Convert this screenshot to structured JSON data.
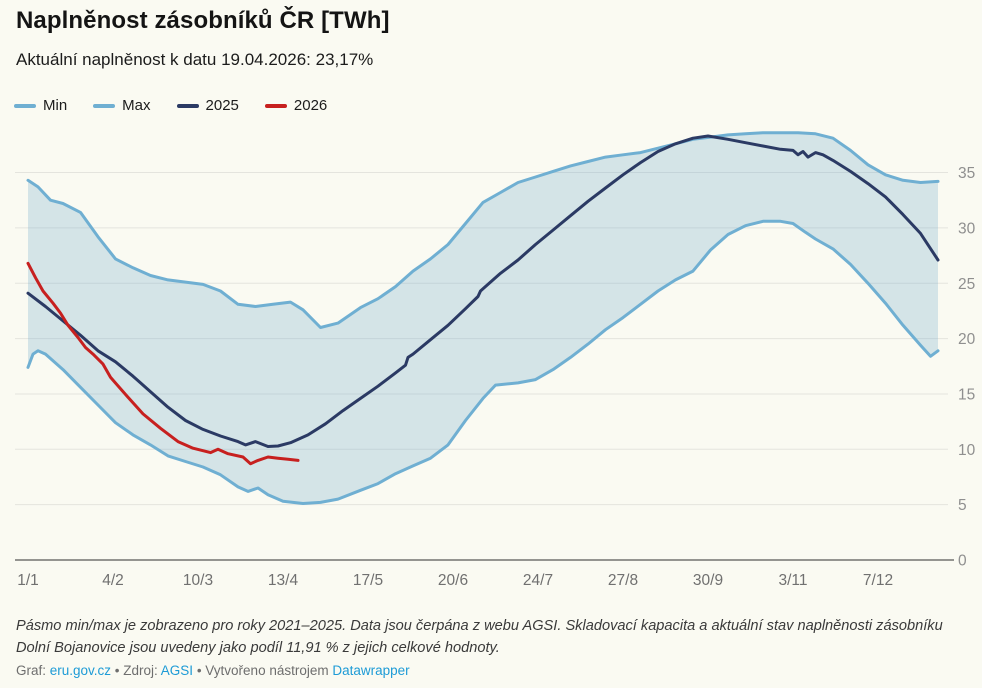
{
  "header": {
    "title": "Naplněnost zásobníků ČR [TWh]",
    "subtitle": "Aktuální naplněnost k datu 19.04.2026: 23,17%"
  },
  "legend": [
    {
      "label": "Min",
      "color": "#6fafd2"
    },
    {
      "label": "Max",
      "color": "#6fafd2"
    },
    {
      "label": "2025",
      "color": "#2b3a64"
    },
    {
      "label": "2026",
      "color": "#c7201f"
    }
  ],
  "chart_data": {
    "type": "line",
    "title": "Naplněnost zásobníků ČR [TWh]",
    "xlabel": "",
    "ylabel": "TWh",
    "ylim": [
      0,
      39.5
    ],
    "xlim_days": [
      0,
      364
    ],
    "grid": "horizontal",
    "legend_position": "top-left",
    "y_axis_side": "right",
    "y_ticks": [
      0,
      5,
      10,
      15,
      20,
      25,
      30,
      35
    ],
    "x_ticks": [
      {
        "day": 0,
        "label": "1/1"
      },
      {
        "day": 34,
        "label": "4/2"
      },
      {
        "day": 68,
        "label": "10/3"
      },
      {
        "day": 102,
        "label": "13/4"
      },
      {
        "day": 136,
        "label": "17/5"
      },
      {
        "day": 170,
        "label": "20/6"
      },
      {
        "day": 204,
        "label": "24/7"
      },
      {
        "day": 238,
        "label": "27/8"
      },
      {
        "day": 272,
        "label": "30/9"
      },
      {
        "day": 306,
        "label": "3/11"
      },
      {
        "day": 340,
        "label": "7/12"
      }
    ],
    "band": {
      "upper": "Max",
      "lower": "Min",
      "fill": "#74aecd",
      "fill_opacity": 0.28
    },
    "series": [
      {
        "name": "Min",
        "color": "#6fafd2",
        "width": 3,
        "points": [
          [
            0,
            17.4
          ],
          [
            2,
            18.6
          ],
          [
            4,
            18.9
          ],
          [
            7,
            18.6
          ],
          [
            14,
            17.2
          ],
          [
            21,
            15.6
          ],
          [
            28,
            14.0
          ],
          [
            35,
            12.4
          ],
          [
            42,
            11.3
          ],
          [
            49,
            10.4
          ],
          [
            56,
            9.4
          ],
          [
            63,
            8.9
          ],
          [
            70,
            8.4
          ],
          [
            77,
            7.7
          ],
          [
            84,
            6.6
          ],
          [
            88,
            6.2
          ],
          [
            92,
            6.5
          ],
          [
            96,
            5.9
          ],
          [
            102,
            5.3
          ],
          [
            110,
            5.1
          ],
          [
            117,
            5.2
          ],
          [
            124,
            5.5
          ],
          [
            133,
            6.3
          ],
          [
            140,
            6.9
          ],
          [
            147,
            7.8
          ],
          [
            154,
            8.5
          ],
          [
            161,
            9.2
          ],
          [
            168,
            10.4
          ],
          [
            175,
            12.6
          ],
          [
            182,
            14.6
          ],
          [
            187,
            15.8
          ],
          [
            196,
            16.0
          ],
          [
            203,
            16.3
          ],
          [
            210,
            17.2
          ],
          [
            217,
            18.3
          ],
          [
            224,
            19.5
          ],
          [
            231,
            20.8
          ],
          [
            238,
            21.9
          ],
          [
            245,
            23.1
          ],
          [
            252,
            24.3
          ],
          [
            259,
            25.3
          ],
          [
            266,
            26.1
          ],
          [
            273,
            28.0
          ],
          [
            280,
            29.4
          ],
          [
            287,
            30.2
          ],
          [
            294,
            30.6
          ],
          [
            301,
            30.6
          ],
          [
            306,
            30.4
          ],
          [
            311,
            29.6
          ],
          [
            315,
            29.0
          ],
          [
            322,
            28.1
          ],
          [
            329,
            26.7
          ],
          [
            336,
            25.0
          ],
          [
            343,
            23.2
          ],
          [
            350,
            21.2
          ],
          [
            357,
            19.4
          ],
          [
            361,
            18.4
          ],
          [
            364,
            18.9
          ]
        ]
      },
      {
        "name": "Max",
        "color": "#6fafd2",
        "width": 3,
        "points": [
          [
            0,
            34.3
          ],
          [
            4,
            33.7
          ],
          [
            9,
            32.5
          ],
          [
            14,
            32.2
          ],
          [
            21,
            31.4
          ],
          [
            28,
            29.2
          ],
          [
            35,
            27.2
          ],
          [
            42,
            26.4
          ],
          [
            49,
            25.7
          ],
          [
            56,
            25.3
          ],
          [
            63,
            25.1
          ],
          [
            70,
            24.9
          ],
          [
            77,
            24.3
          ],
          [
            84,
            23.1
          ],
          [
            91,
            22.9
          ],
          [
            98,
            23.1
          ],
          [
            105,
            23.3
          ],
          [
            110,
            22.6
          ],
          [
            117,
            21.0
          ],
          [
            124,
            21.4
          ],
          [
            133,
            22.8
          ],
          [
            140,
            23.6
          ],
          [
            147,
            24.7
          ],
          [
            154,
            26.1
          ],
          [
            161,
            27.2
          ],
          [
            168,
            28.5
          ],
          [
            175,
            30.4
          ],
          [
            182,
            32.3
          ],
          [
            189,
            33.2
          ],
          [
            196,
            34.1
          ],
          [
            203,
            34.6
          ],
          [
            210,
            35.1
          ],
          [
            217,
            35.6
          ],
          [
            224,
            36.0
          ],
          [
            231,
            36.4
          ],
          [
            238,
            36.6
          ],
          [
            245,
            36.8
          ],
          [
            252,
            37.2
          ],
          [
            259,
            37.6
          ],
          [
            266,
            38.0
          ],
          [
            273,
            38.2
          ],
          [
            280,
            38.4
          ],
          [
            287,
            38.5
          ],
          [
            294,
            38.6
          ],
          [
            301,
            38.6
          ],
          [
            308,
            38.6
          ],
          [
            315,
            38.5
          ],
          [
            322,
            38.1
          ],
          [
            329,
            37.0
          ],
          [
            336,
            35.7
          ],
          [
            343,
            34.8
          ],
          [
            350,
            34.3
          ],
          [
            357,
            34.1
          ],
          [
            364,
            34.2
          ]
        ]
      },
      {
        "name": "2025",
        "color": "#2b3a64",
        "width": 3,
        "points": [
          [
            0,
            24.1
          ],
          [
            7,
            22.9
          ],
          [
            14,
            21.6
          ],
          [
            21,
            20.3
          ],
          [
            28,
            18.9
          ],
          [
            35,
            17.9
          ],
          [
            42,
            16.6
          ],
          [
            49,
            15.2
          ],
          [
            56,
            13.8
          ],
          [
            63,
            12.6
          ],
          [
            70,
            11.8
          ],
          [
            77,
            11.2
          ],
          [
            84,
            10.7
          ],
          [
            87,
            10.4
          ],
          [
            91,
            10.7
          ],
          [
            96,
            10.25
          ],
          [
            100,
            10.3
          ],
          [
            105,
            10.6
          ],
          [
            112,
            11.3
          ],
          [
            119,
            12.3
          ],
          [
            126,
            13.5
          ],
          [
            133,
            14.6
          ],
          [
            140,
            15.7
          ],
          [
            147,
            16.9
          ],
          [
            151,
            17.6
          ],
          [
            152,
            18.3
          ],
          [
            154,
            18.6
          ],
          [
            161,
            19.9
          ],
          [
            168,
            21.2
          ],
          [
            175,
            22.7
          ],
          [
            180,
            23.8
          ],
          [
            181,
            24.3
          ],
          [
            182,
            24.5
          ],
          [
            189,
            25.9
          ],
          [
            196,
            27.1
          ],
          [
            203,
            28.5
          ],
          [
            210,
            29.8
          ],
          [
            217,
            31.1
          ],
          [
            224,
            32.4
          ],
          [
            231,
            33.6
          ],
          [
            238,
            34.8
          ],
          [
            245,
            35.9
          ],
          [
            252,
            36.9
          ],
          [
            259,
            37.6
          ],
          [
            266,
            38.1
          ],
          [
            272,
            38.3
          ],
          [
            280,
            38.0
          ],
          [
            287,
            37.7
          ],
          [
            294,
            37.4
          ],
          [
            301,
            37.1
          ],
          [
            306,
            37.0
          ],
          [
            308,
            36.6
          ],
          [
            310,
            36.9
          ],
          [
            312,
            36.4
          ],
          [
            315,
            36.8
          ],
          [
            318,
            36.6
          ],
          [
            322,
            36.1
          ],
          [
            329,
            35.1
          ],
          [
            336,
            34.0
          ],
          [
            343,
            32.8
          ],
          [
            350,
            31.2
          ],
          [
            357,
            29.5
          ],
          [
            364,
            27.1
          ]
        ]
      },
      {
        "name": "2026",
        "color": "#c7201f",
        "width": 3,
        "points": [
          [
            0,
            26.8
          ],
          [
            3,
            25.5
          ],
          [
            6,
            24.3
          ],
          [
            10,
            23.2
          ],
          [
            13,
            22.3
          ],
          [
            16,
            21.2
          ],
          [
            20,
            20.1
          ],
          [
            23,
            19.2
          ],
          [
            26,
            18.6
          ],
          [
            30,
            17.7
          ],
          [
            33,
            16.5
          ],
          [
            40,
            14.7
          ],
          [
            46,
            13.2
          ],
          [
            53,
            11.9
          ],
          [
            60,
            10.7
          ],
          [
            66,
            10.1
          ],
          [
            73,
            9.7
          ],
          [
            76,
            10.0
          ],
          [
            80,
            9.6
          ],
          [
            86,
            9.3
          ],
          [
            89,
            8.7
          ],
          [
            92,
            9.0
          ],
          [
            96,
            9.3
          ],
          [
            100,
            9.2
          ],
          [
            104,
            9.1
          ],
          [
            108,
            9.0
          ]
        ]
      }
    ]
  },
  "notes": {
    "text": "Pásmo min/max je zobrazeno pro roky 2021–2025. Data jsou čerpána z webu AGSI. Skladovací kapacita a aktuální stav naplněnosti zásobníku Dolní Bojanovice jsou uvedeny jako podíl 11,91 % z jejich celkové hodnoty."
  },
  "credit": {
    "parts": [
      {
        "text": "Graf: ",
        "link": false
      },
      {
        "text": "eru.gov.cz",
        "link": true,
        "id": "eru"
      },
      {
        "text": " • Zdroj: ",
        "link": false
      },
      {
        "text": "AGSI",
        "link": true,
        "id": "agsi"
      },
      {
        "text": " • Vytvořeno nástrojem ",
        "link": false
      },
      {
        "text": "Datawrapper",
        "link": true,
        "id": "datawrapper"
      }
    ]
  },
  "colors": {
    "background": "#fafaf2",
    "grid": "#e4e4de",
    "axis": "#2f2f2f",
    "x_tick_label": "#707070",
    "y_tick_label": "#8f8f8f",
    "link": "#1d9bd6"
  }
}
